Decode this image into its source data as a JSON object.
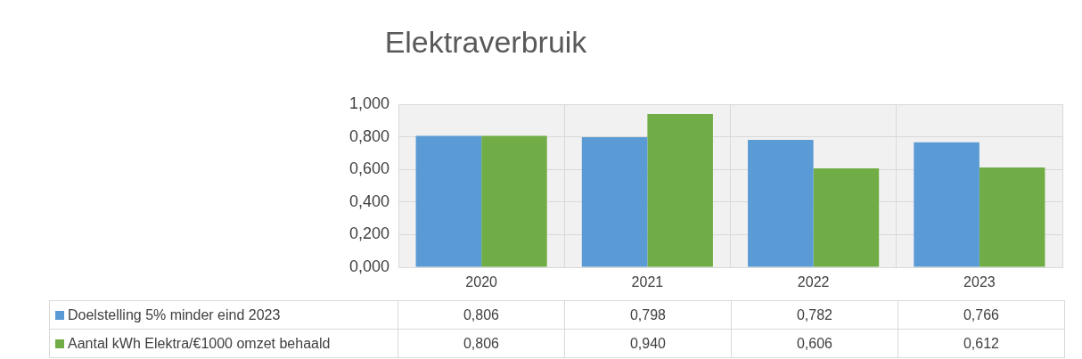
{
  "chart_data": {
    "type": "bar",
    "title": "Elektraverbruik",
    "categories": [
      "2020",
      "2021",
      "2022",
      "2023"
    ],
    "series": [
      {
        "name": "Doelstelling 5% minder eind 2023",
        "color": "#5b9bd5",
        "values": [
          0.806,
          0.798,
          0.782,
          0.766
        ],
        "value_labels": [
          "0,806",
          "0,798",
          "0,782",
          "0,766"
        ]
      },
      {
        "name": "Aantal kWh Elektra/€1000 omzet behaald",
        "color": "#70ad47",
        "values": [
          0.806,
          0.94,
          0.606,
          0.612
        ],
        "value_labels": [
          "0,806",
          "0,940",
          "0,606",
          "0,612"
        ]
      }
    ],
    "ylim": [
      0,
      1
    ],
    "yticks": [
      {
        "value": 0,
        "label": "0,000"
      },
      {
        "value": 0.2,
        "label": "0,200"
      },
      {
        "value": 0.4,
        "label": "0,400"
      },
      {
        "value": 0.6,
        "label": "0,600"
      },
      {
        "value": 0.8,
        "label": "0,800"
      },
      {
        "value": 1,
        "label": "1,000"
      }
    ],
    "grid": true,
    "legend": "bottom"
  }
}
